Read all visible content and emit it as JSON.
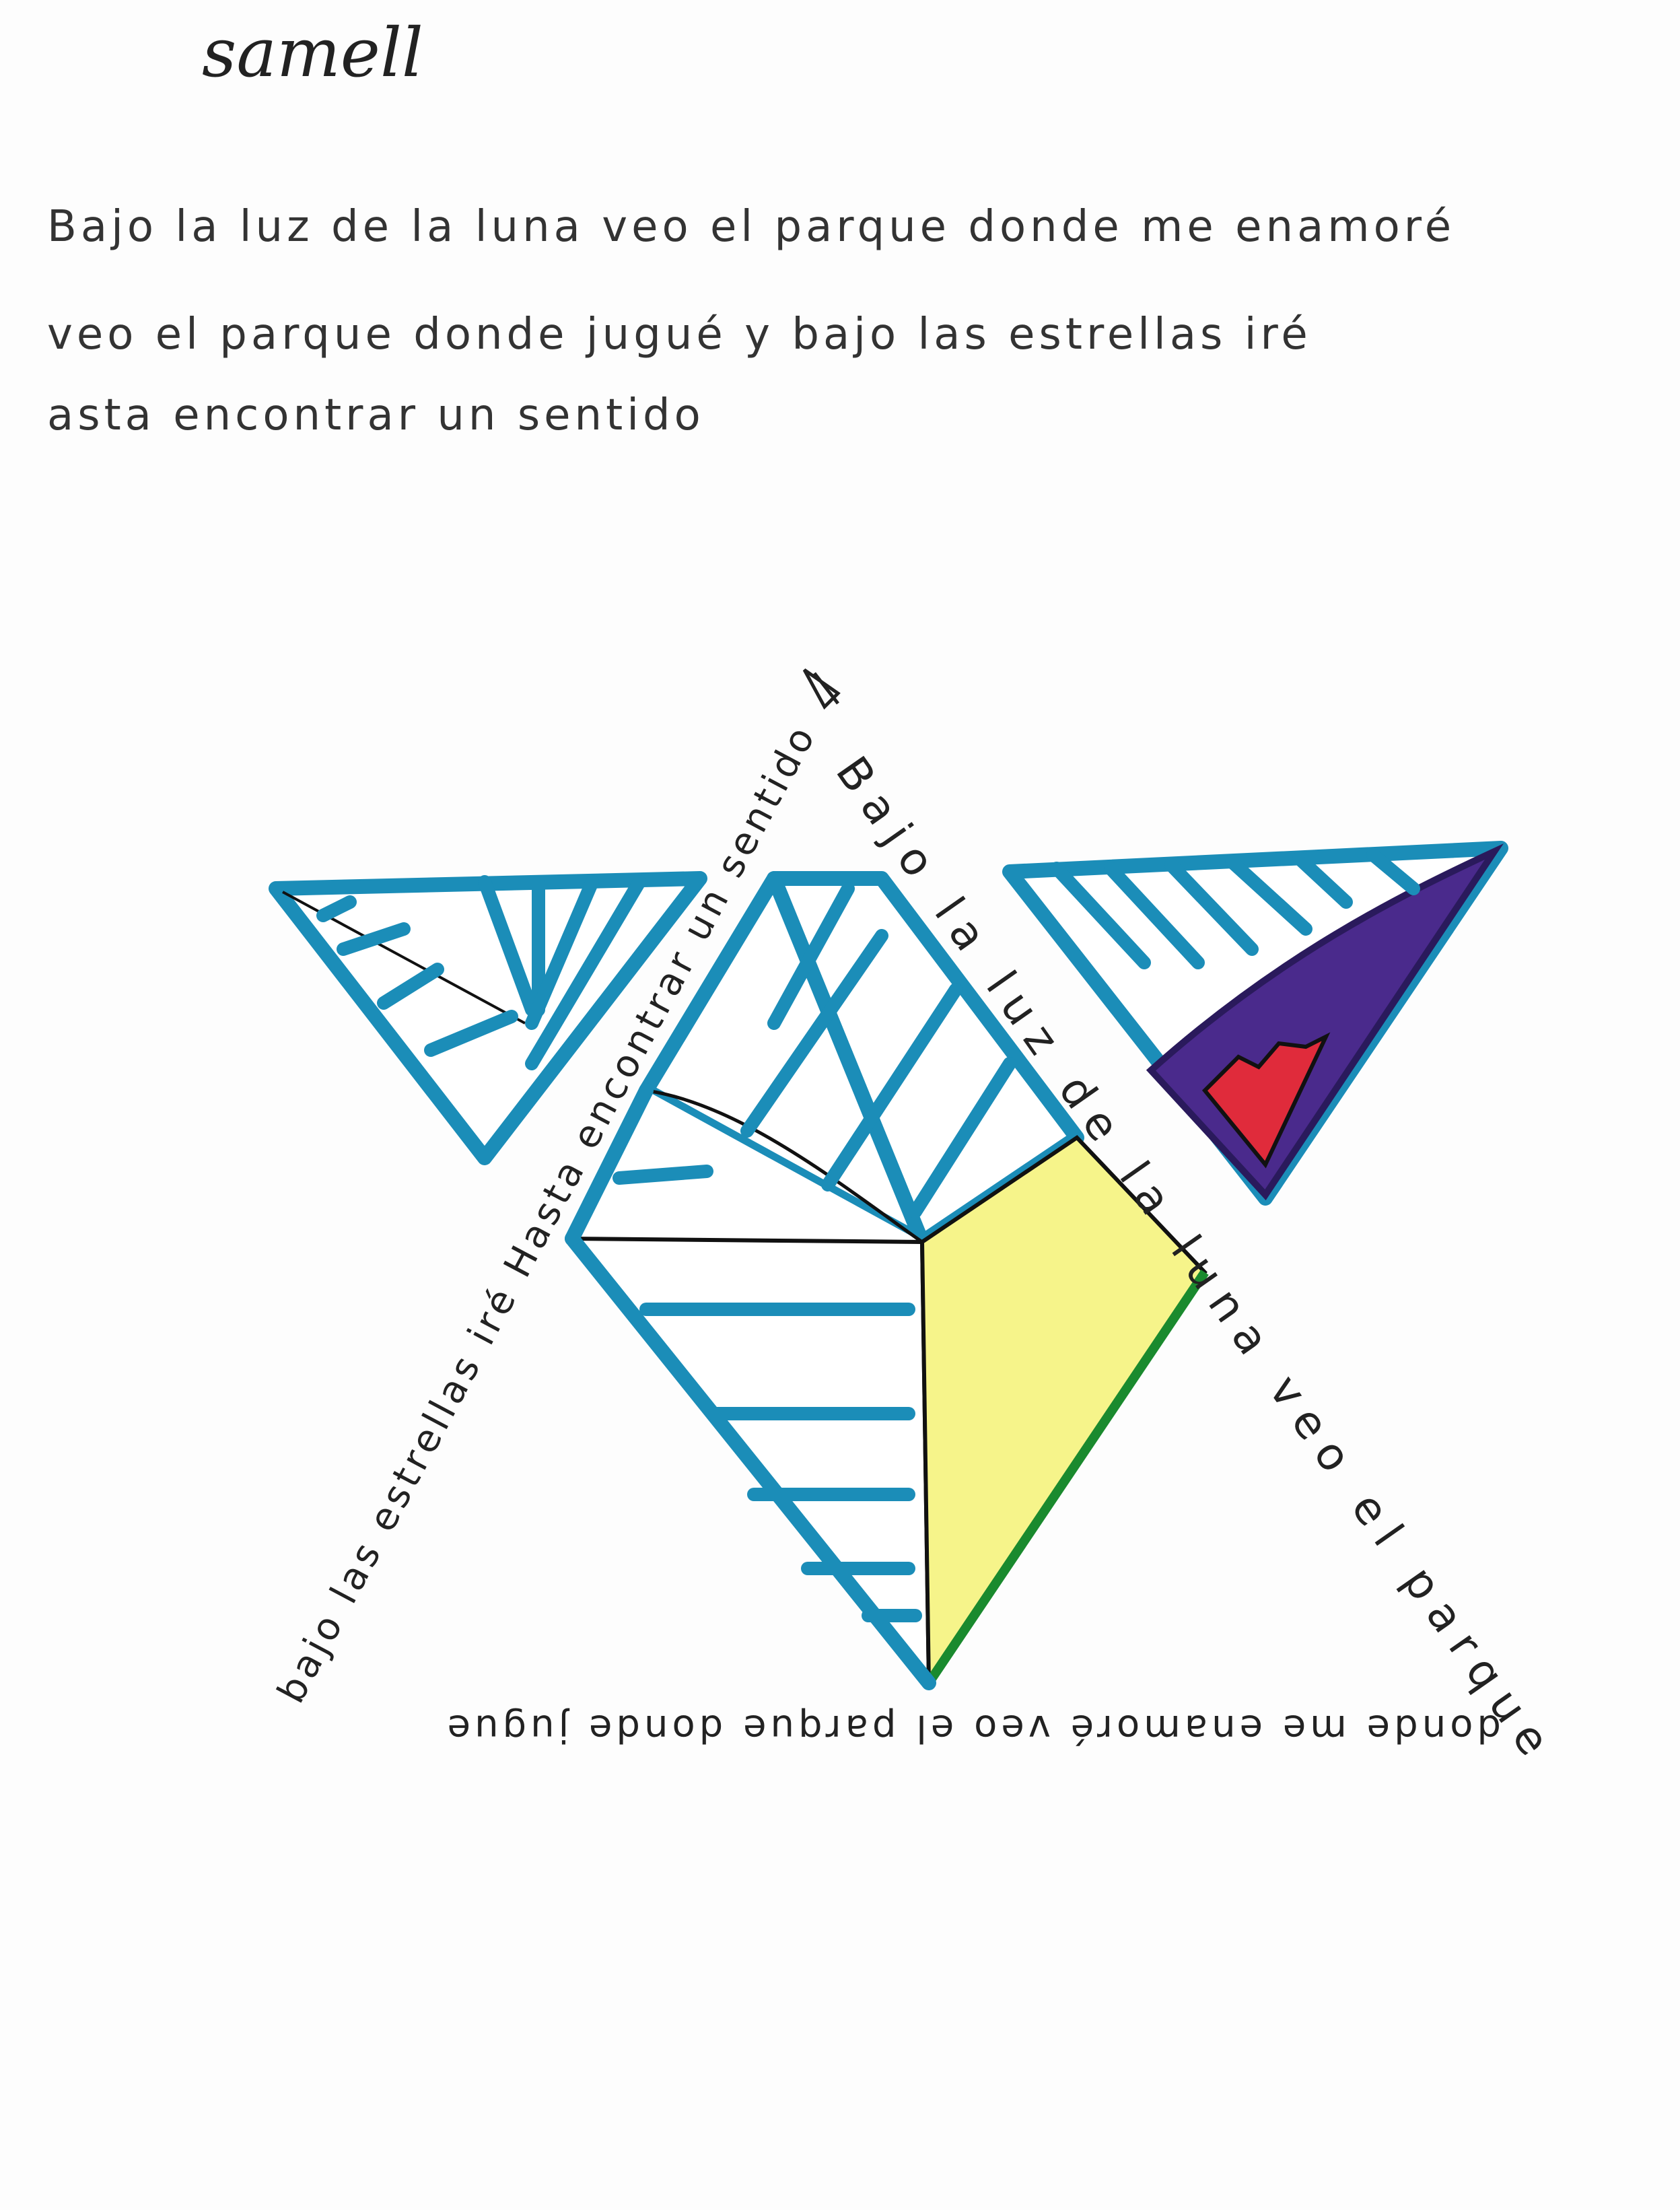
{
  "author": "samell",
  "poem": {
    "line1": "Bajo la luz de la luna veo el parque donde me enamoré",
    "line2": "veo el parque donde jugué y bajo las estrellas iré",
    "line3": "asta encontrar un sentido"
  },
  "drawing": {
    "right_edge_text": "Bajo la luz de la luna veo el parque",
    "left_edge_text": "bajo las estrellas iré Hasta encontrar un sentido",
    "bottom_edge_text": "donde me enamoré veo el parque donde jugue"
  },
  "colors": {
    "blue": "#1b8db8",
    "yellow": "#f6f48a",
    "purple": "#4a2a8c",
    "red": "#e02b3b",
    "green": "#1a8a2e",
    "ink": "#111111"
  }
}
